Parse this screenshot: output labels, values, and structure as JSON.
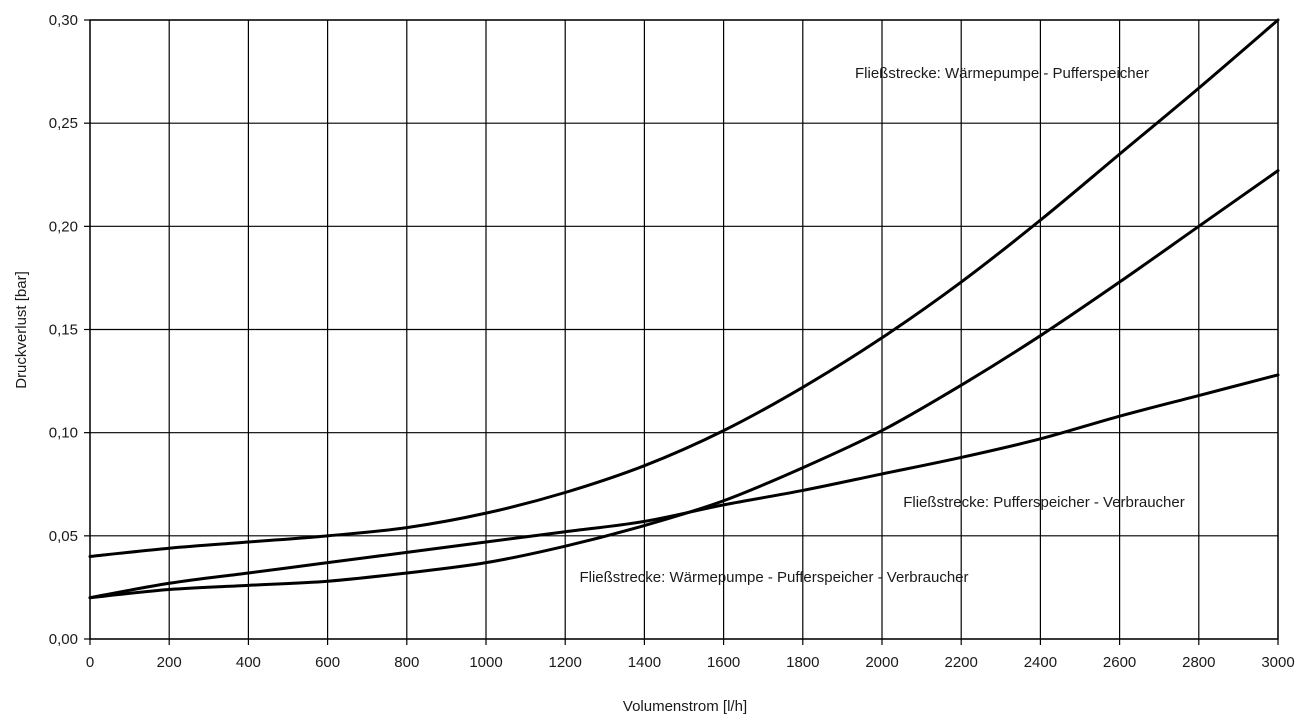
{
  "chart_data": {
    "type": "line",
    "xlabel": "Volumenstrom [l/h]",
    "ylabel": "Druckverlust [bar]",
    "xlim": [
      0,
      3000
    ],
    "ylim": [
      0,
      0.3
    ],
    "grid": true,
    "x_ticks": [
      0,
      200,
      400,
      600,
      800,
      1000,
      1200,
      1400,
      1600,
      1800,
      2000,
      2200,
      2400,
      2600,
      2800,
      3000
    ],
    "x_tick_labels": [
      "0",
      "200",
      "400",
      "600",
      "800",
      "1000",
      "1200",
      "1400",
      "1600",
      "1800",
      "2000",
      "2200",
      "2400",
      "2600",
      "2800",
      "3000"
    ],
    "y_ticks": [
      0,
      0.05,
      0.1,
      0.15,
      0.2,
      0.25,
      0.3
    ],
    "y_tick_labels": [
      "0,00",
      "0,05",
      "0,10",
      "0,15",
      "0,20",
      "0,25",
      "0,30"
    ],
    "x": [
      0,
      200,
      400,
      600,
      800,
      1000,
      1200,
      1400,
      1600,
      1800,
      2000,
      2200,
      2400,
      2600,
      2800,
      3000
    ],
    "series": [
      {
        "values": [
          0.04,
          0.044,
          0.047,
          0.05,
          0.054,
          0.061,
          0.071,
          0.084,
          0.101,
          0.122,
          0.146,
          0.173,
          0.203,
          0.235,
          0.267,
          0.3
        ]
      },
      {
        "values": [
          0.02,
          0.024,
          0.026,
          0.028,
          0.032,
          0.037,
          0.045,
          0.055,
          0.067,
          0.083,
          0.101,
          0.123,
          0.147,
          0.173,
          0.2,
          0.227
        ]
      },
      {
        "values": [
          0.02,
          0.027,
          0.032,
          0.037,
          0.042,
          0.047,
          0.052,
          0.057,
          0.065,
          0.072,
          0.08,
          0.088,
          0.097,
          0.108,
          0.118,
          0.128
        ]
      }
    ],
    "annotations": [
      {
        "text": "Fließstrecke: Wärmepumpe - Pufferspeicher"
      },
      {
        "text": "Fließstrecke: Pufferspeicher - Verbraucher"
      },
      {
        "text": "Fließstrecke: Wärmepumpe - Pufferspeicher - Verbraucher"
      }
    ]
  }
}
